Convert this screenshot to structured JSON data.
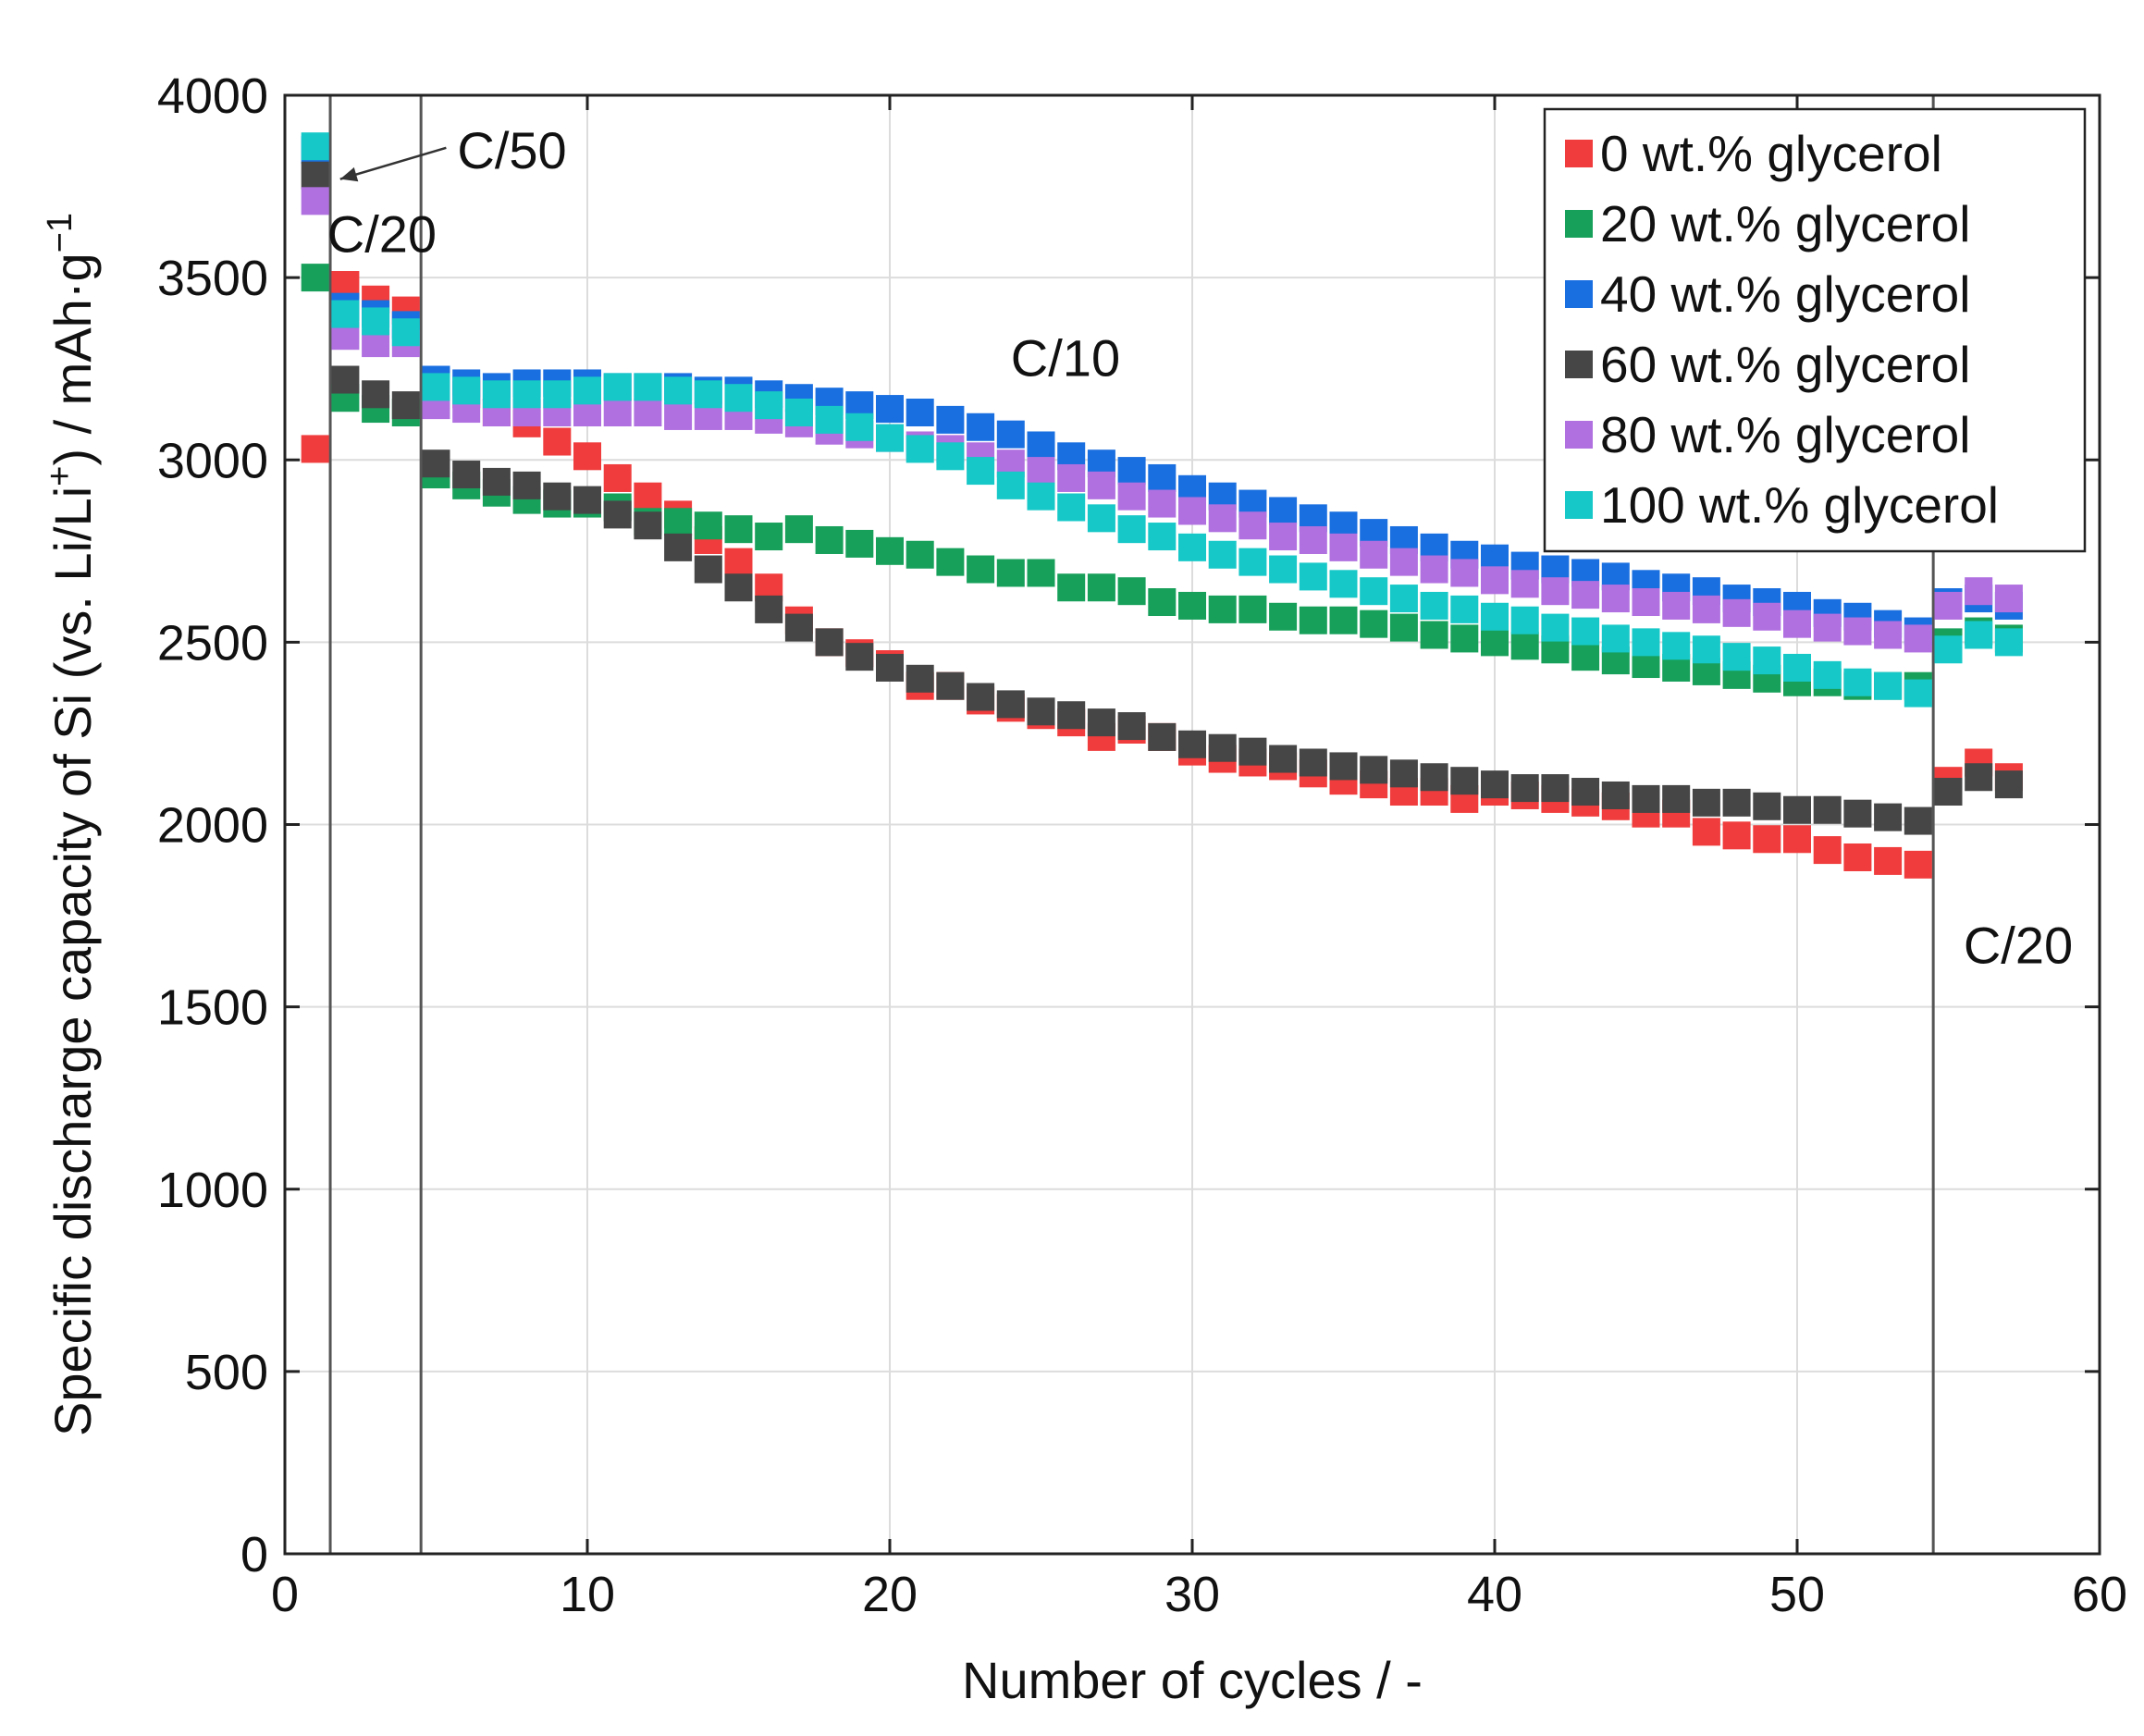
{
  "chart_data": {
    "type": "scatter",
    "title": "",
    "xlabel": "Number of cycles / -",
    "ylabel_prefix": "Specific discharge capacity of Si (vs. Li/Li",
    "ylabel_sup1": "+",
    "ylabel_mid": ") / mAh·g",
    "ylabel_sup2": "−1",
    "xlim": [
      0,
      60
    ],
    "ylim": [
      0,
      4000
    ],
    "xticks": [
      0,
      10,
      20,
      30,
      40,
      50,
      60
    ],
    "yticks": [
      0,
      500,
      1000,
      1500,
      2000,
      2500,
      3000,
      3500,
      4000
    ],
    "grid": true,
    "legend_position": "top-right",
    "annotations": [
      {
        "text": "C/50",
        "x": 5.7,
        "y": 3800,
        "arrow_to": [
          1.4,
          3770
        ]
      },
      {
        "text": "C/20",
        "x": 1.4,
        "y": 3570
      },
      {
        "text": "C/10",
        "x": 24,
        "y": 3230
      },
      {
        "text": "C/20",
        "x": 55.5,
        "y": 1620
      }
    ],
    "rate_boundaries_x": [
      1.5,
      4.5,
      54.5
    ],
    "series": [
      {
        "name": "0 wt.% glycerol",
        "color": "#f03c3c",
        "x": [
          1,
          2,
          3,
          4,
          5,
          6,
          7,
          8,
          9,
          10,
          11,
          12,
          13,
          14,
          15,
          16,
          17,
          18,
          19,
          20,
          21,
          22,
          23,
          24,
          25,
          26,
          27,
          28,
          29,
          30,
          31,
          32,
          33,
          34,
          35,
          36,
          37,
          38,
          39,
          40,
          41,
          42,
          43,
          44,
          45,
          46,
          47,
          48,
          49,
          50,
          51,
          52,
          53,
          54,
          55,
          56,
          57
        ],
        "values": [
          3030,
          3480,
          3440,
          3410,
          3200,
          3180,
          3130,
          3100,
          3050,
          3010,
          2950,
          2900,
          2850,
          2780,
          2720,
          2650,
          2560,
          2500,
          2470,
          2440,
          2380,
          2380,
          2340,
          2320,
          2300,
          2280,
          2240,
          2260,
          2240,
          2200,
          2180,
          2170,
          2160,
          2140,
          2120,
          2110,
          2090,
          2090,
          2070,
          2090,
          2080,
          2070,
          2060,
          2050,
          2030,
          2030,
          1980,
          1970,
          1960,
          1960,
          1930,
          1910,
          1900,
          1890,
          2120,
          2170,
          2130
        ]
      },
      {
        "name": "20 wt.% glycerol",
        "color": "#17a05a",
        "x": [
          1,
          2,
          3,
          4,
          5,
          6,
          7,
          8,
          9,
          10,
          11,
          12,
          13,
          14,
          15,
          16,
          17,
          18,
          19,
          20,
          21,
          22,
          23,
          24,
          25,
          26,
          27,
          28,
          29,
          30,
          31,
          32,
          33,
          34,
          35,
          36,
          37,
          38,
          39,
          40,
          41,
          42,
          43,
          44,
          45,
          46,
          47,
          48,
          49,
          50,
          51,
          52,
          53,
          54,
          55,
          56,
          57
        ],
        "values": [
          3500,
          3170,
          3140,
          3130,
          2960,
          2930,
          2910,
          2890,
          2880,
          2880,
          2870,
          2830,
          2830,
          2820,
          2810,
          2790,
          2810,
          2780,
          2770,
          2750,
          2740,
          2720,
          2700,
          2690,
          2690,
          2650,
          2650,
          2640,
          2610,
          2600,
          2590,
          2590,
          2570,
          2560,
          2560,
          2550,
          2540,
          2520,
          2510,
          2500,
          2490,
          2480,
          2460,
          2450,
          2440,
          2430,
          2420,
          2410,
          2400,
          2390,
          2390,
          2380,
          2380,
          2380,
          2500,
          2530,
          2510
        ]
      },
      {
        "name": "40 wt.% glycerol",
        "color": "#1a6fe0",
        "x": [
          1,
          2,
          3,
          4,
          5,
          6,
          7,
          8,
          9,
          10,
          11,
          12,
          13,
          14,
          15,
          16,
          17,
          18,
          19,
          20,
          21,
          22,
          23,
          24,
          25,
          26,
          27,
          28,
          29,
          30,
          31,
          32,
          33,
          34,
          35,
          36,
          37,
          38,
          39,
          40,
          41,
          42,
          43,
          44,
          45,
          46,
          47,
          48,
          49,
          50,
          51,
          52,
          53,
          54,
          55,
          56,
          57
        ],
        "values": [
          3850,
          3420,
          3400,
          3370,
          3220,
          3210,
          3200,
          3210,
          3210,
          3210,
          3200,
          3200,
          3200,
          3190,
          3190,
          3180,
          3170,
          3160,
          3150,
          3140,
          3130,
          3110,
          3090,
          3070,
          3040,
          3010,
          2990,
          2970,
          2950,
          2920,
          2900,
          2880,
          2860,
          2840,
          2820,
          2800,
          2780,
          2760,
          2740,
          2730,
          2710,
          2700,
          2690,
          2680,
          2660,
          2650,
          2640,
          2620,
          2610,
          2600,
          2580,
          2570,
          2550,
          2530,
          2610,
          2620,
          2600
        ]
      },
      {
        "name": "60 wt.% glycerol",
        "color": "#464646",
        "x": [
          1,
          2,
          3,
          4,
          5,
          6,
          7,
          8,
          9,
          10,
          11,
          12,
          13,
          14,
          15,
          16,
          17,
          18,
          19,
          20,
          21,
          22,
          23,
          24,
          25,
          26,
          27,
          28,
          29,
          30,
          31,
          32,
          33,
          34,
          35,
          36,
          37,
          38,
          39,
          40,
          41,
          42,
          43,
          44,
          45,
          46,
          47,
          48,
          49,
          50,
          51,
          52,
          53,
          54,
          55,
          56,
          57
        ],
        "values": [
          3780,
          3220,
          3180,
          3150,
          2990,
          2960,
          2940,
          2930,
          2900,
          2890,
          2850,
          2820,
          2760,
          2700,
          2650,
          2590,
          2540,
          2500,
          2460,
          2430,
          2400,
          2380,
          2350,
          2330,
          2310,
          2300,
          2280,
          2270,
          2240,
          2220,
          2210,
          2200,
          2180,
          2170,
          2160,
          2150,
          2140,
          2130,
          2120,
          2110,
          2100,
          2100,
          2090,
          2080,
          2070,
          2070,
          2060,
          2060,
          2050,
          2040,
          2040,
          2030,
          2020,
          2010,
          2090,
          2130,
          2110
        ]
      },
      {
        "name": "80 wt.% glycerol",
        "color": "#b070e0",
        "x": [
          1,
          2,
          3,
          4,
          5,
          6,
          7,
          8,
          9,
          10,
          11,
          12,
          13,
          14,
          15,
          16,
          17,
          18,
          19,
          20,
          21,
          22,
          23,
          24,
          25,
          26,
          27,
          28,
          29,
          30,
          31,
          32,
          33,
          34,
          35,
          36,
          37,
          38,
          39,
          40,
          41,
          42,
          43,
          44,
          45,
          46,
          47,
          48,
          49,
          50,
          51,
          52,
          53,
          54,
          55,
          56,
          57
        ],
        "values": [
          3710,
          3340,
          3320,
          3320,
          3150,
          3140,
          3130,
          3130,
          3130,
          3130,
          3130,
          3130,
          3120,
          3120,
          3120,
          3110,
          3100,
          3080,
          3070,
          3060,
          3040,
          3030,
          3010,
          2990,
          2970,
          2950,
          2930,
          2900,
          2880,
          2860,
          2840,
          2820,
          2790,
          2780,
          2760,
          2740,
          2720,
          2700,
          2690,
          2670,
          2660,
          2640,
          2630,
          2620,
          2610,
          2600,
          2590,
          2580,
          2570,
          2550,
          2540,
          2530,
          2520,
          2510,
          2600,
          2640,
          2620
        ]
      },
      {
        "name": "100 wt.% glycerol",
        "color": "#17c8c8",
        "x": [
          1,
          2,
          3,
          4,
          5,
          6,
          7,
          8,
          9,
          10,
          11,
          12,
          13,
          14,
          15,
          16,
          17,
          18,
          19,
          20,
          21,
          22,
          23,
          24,
          25,
          26,
          27,
          28,
          29,
          30,
          31,
          32,
          33,
          34,
          35,
          36,
          37,
          38,
          39,
          40,
          41,
          42,
          43,
          44,
          45,
          46,
          47,
          48,
          49,
          50,
          51,
          52,
          53,
          54,
          55,
          56,
          57
        ],
        "values": [
          3860,
          3400,
          3380,
          3350,
          3200,
          3190,
          3180,
          3180,
          3180,
          3190,
          3200,
          3200,
          3190,
          3180,
          3170,
          3150,
          3130,
          3110,
          3090,
          3060,
          3030,
          3010,
          2970,
          2930,
          2900,
          2870,
          2840,
          2810,
          2790,
          2760,
          2740,
          2720,
          2700,
          2680,
          2660,
          2640,
          2620,
          2600,
          2590,
          2570,
          2560,
          2540,
          2530,
          2510,
          2500,
          2490,
          2480,
          2460,
          2450,
          2430,
          2410,
          2390,
          2380,
          2360,
          2480,
          2520,
          2500
        ]
      }
    ]
  }
}
